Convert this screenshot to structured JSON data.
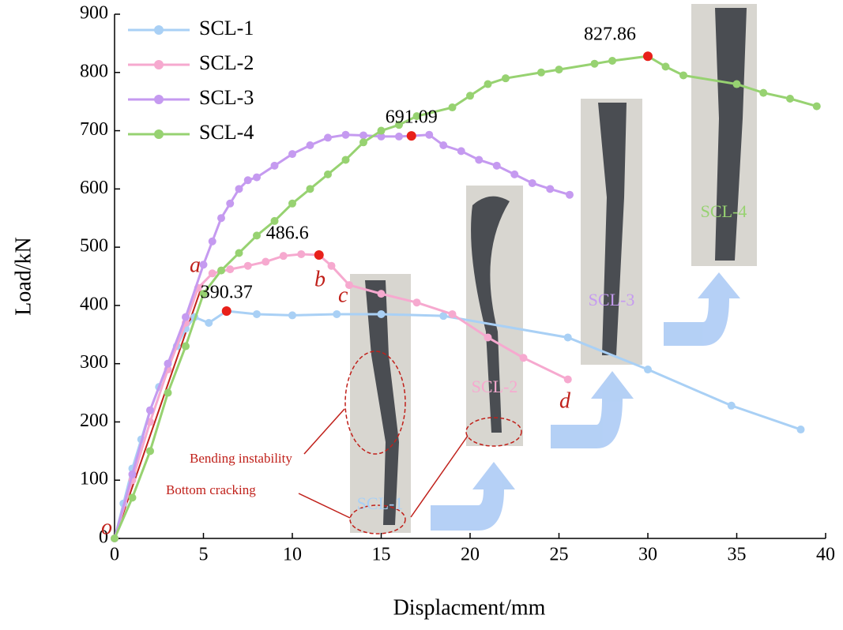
{
  "chart_data": {
    "type": "line",
    "x_label": "Displacment/mm",
    "y_label": "Load/kN",
    "xlim": [
      0,
      40
    ],
    "xticks": [
      0,
      5,
      10,
      15,
      20,
      25,
      30,
      35,
      40
    ],
    "ylim": [
      0,
      900
    ],
    "yticks": [
      0,
      100,
      200,
      300,
      400,
      500,
      600,
      700,
      800,
      900
    ],
    "legend": "upper left",
    "series": [
      {
        "name": "SCL-1",
        "color": "#a9d0f5",
        "x": [
          0,
          0.5,
          1,
          1.5,
          2,
          2.5,
          3,
          3.5,
          4,
          4.5,
          5.3,
          6.3,
          8,
          10,
          12.5,
          15,
          18.5,
          25.5,
          30,
          34.7,
          38.6
        ],
        "values": [
          0,
          60,
          120,
          170,
          220,
          260,
          300,
          330,
          360,
          380,
          370,
          390.37,
          385,
          383,
          385,
          385,
          382,
          345,
          290,
          228,
          187
        ]
      },
      {
        "name": "SCL-2",
        "color": "#f6a9cf",
        "x": [
          0,
          1,
          2,
          3,
          4,
          4.7,
          5.5,
          6.5,
          7.5,
          8.5,
          9.5,
          10.5,
          11.5,
          12.2,
          13.2,
          15,
          17,
          19,
          21,
          23,
          25.5
        ],
        "values": [
          0,
          100,
          200,
          290,
          370,
          430,
          455,
          462,
          468,
          475,
          485,
          488,
          486.6,
          468,
          435,
          420,
          405,
          385,
          345,
          310,
          273
        ]
      },
      {
        "name": "SCL-3",
        "color": "#c59af0",
        "x": [
          0,
          1,
          2,
          3,
          4,
          5,
          5.5,
          6,
          6.5,
          7,
          7.5,
          8,
          9,
          10,
          11,
          12,
          13,
          14,
          15,
          16,
          16.7,
          17.7,
          18.5,
          19.5,
          20.5,
          21.5,
          22.5,
          23.5,
          24.5,
          25.6
        ],
        "values": [
          0,
          110,
          220,
          300,
          380,
          470,
          510,
          550,
          575,
          600,
          615,
          620,
          640,
          660,
          675,
          688,
          693,
          692,
          690,
          690,
          691.09,
          693,
          675,
          665,
          650,
          640,
          625,
          610,
          600,
          590
        ]
      },
      {
        "name": "SCL-4",
        "color": "#97d271",
        "x": [
          0,
          1,
          2,
          3,
          4,
          5,
          6,
          7,
          8,
          9,
          10,
          11,
          12,
          13,
          14,
          15,
          16,
          17,
          19,
          20,
          21,
          22,
          24,
          25,
          27,
          28,
          30,
          31,
          32,
          35,
          36.5,
          38,
          39.5
        ],
        "values": [
          0,
          70,
          150,
          250,
          330,
          420,
          460,
          490,
          520,
          545,
          575,
          600,
          625,
          650,
          680,
          700,
          710,
          725,
          740,
          760,
          780,
          790,
          800,
          805,
          815,
          820,
          827.86,
          810,
          795,
          780,
          765,
          755,
          742
        ]
      }
    ],
    "peaks": {
      "color": "#e8201a",
      "x": [
        6.3,
        11.5,
        16.7,
        30
      ],
      "values": [
        390.37,
        486.6,
        691.09,
        827.86
      ]
    },
    "annotations": [
      "a",
      "b",
      "c",
      "d",
      "o",
      "Bending instability",
      "Bottom cracking"
    ],
    "photo_labels": [
      "SCL-1",
      "SCL-2",
      "SCL-3",
      "SCL-4"
    ]
  }
}
